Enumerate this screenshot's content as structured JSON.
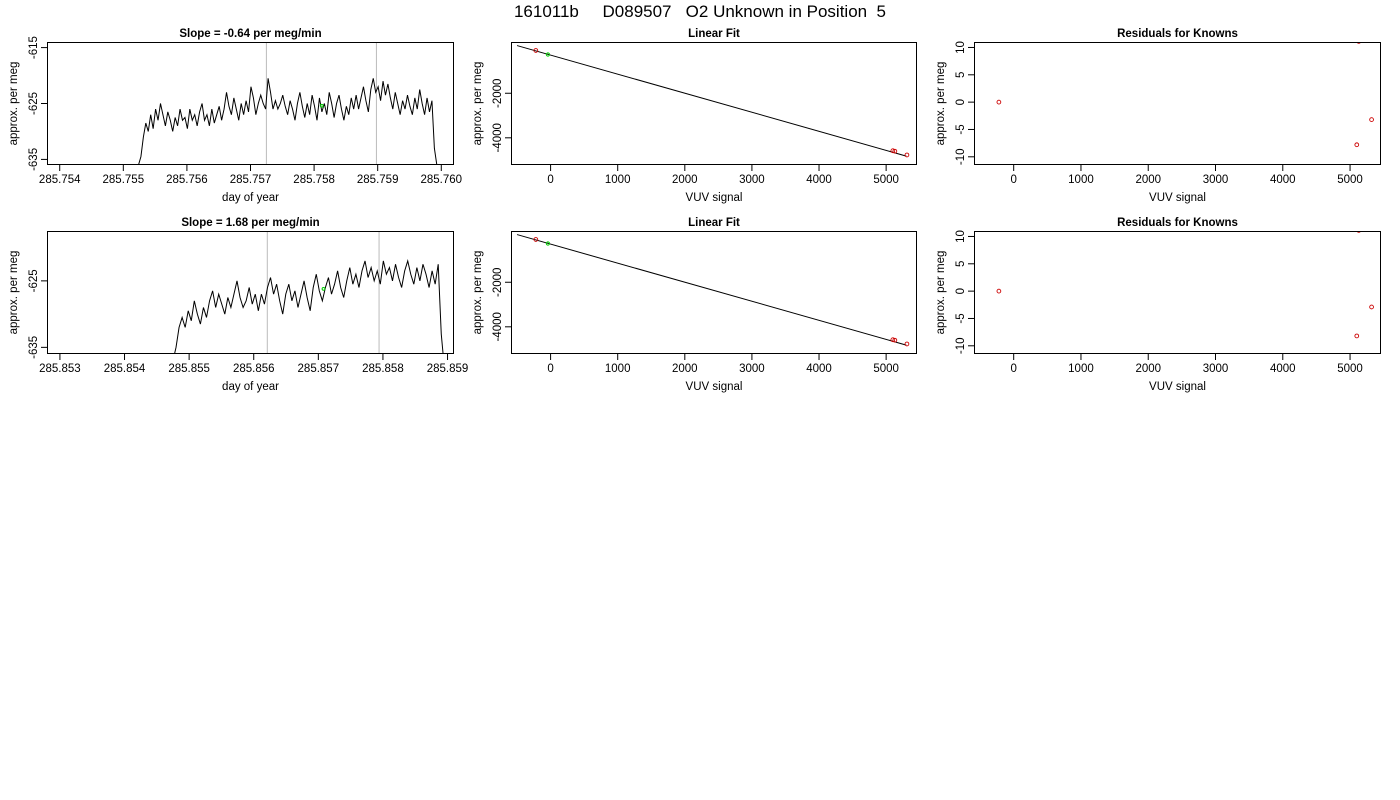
{
  "figure": {
    "title": "161011b     D089507   O2 Unknown in Position  5"
  },
  "chart_data": [
    {
      "id": "drift-top",
      "type": "line",
      "title": "Slope =  -0.64  per meg/min",
      "xlabel": "day of year",
      "ylabel": "approx. per meg",
      "xlim": [
        285.7538,
        285.7602
      ],
      "ylim": [
        -636,
        -614
      ],
      "xticks": [
        285.754,
        285.755,
        285.756,
        285.757,
        285.758,
        285.759,
        285.76
      ],
      "xtick_labels": [
        "285.754",
        "285.755",
        "285.756",
        "285.757",
        "285.758",
        "285.759",
        "285.760"
      ],
      "yticks": [
        -615,
        -625,
        -635
      ],
      "ytick_labels": [
        "-615",
        "-625",
        "-635"
      ],
      "vlines": [
        285.75725,
        285.75898
      ],
      "highlight_point": {
        "x": 285.75812,
        "y": -625.4,
        "color": "#00cc00"
      },
      "line_color": "#000000",
      "vline_color": "#bbbbbb",
      "series": [
        {
          "x_start": 285.7552,
          "x_end": 285.75993,
          "y": [
            -638,
            -636,
            -634.5,
            -631,
            -628.5,
            -630,
            -627,
            -629.5,
            -626,
            -628,
            -625,
            -627,
            -629,
            -626.5,
            -628,
            -630,
            -627.5,
            -629,
            -626,
            -628,
            -627.5,
            -629.5,
            -626,
            -628,
            -627,
            -629,
            -626.5,
            -625,
            -628,
            -627,
            -629,
            -626,
            -628.5,
            -627,
            -625.5,
            -628,
            -626,
            -623,
            -625.5,
            -627,
            -624,
            -626,
            -628,
            -625,
            -627,
            -624.5,
            -626.5,
            -622,
            -624,
            -627,
            -625,
            -623.5,
            -625,
            -626,
            -620.5,
            -623,
            -626,
            -624.5,
            -626,
            -625,
            -623.5,
            -625.5,
            -627,
            -624.5,
            -626,
            -628,
            -625,
            -623,
            -625.5,
            -627.5,
            -625,
            -627,
            -623.5,
            -625.5,
            -628,
            -624,
            -626.5,
            -625,
            -627,
            -623,
            -625,
            -627.5,
            -625,
            -623.5,
            -626,
            -628,
            -625.5,
            -627,
            -624,
            -626,
            -623.5,
            -626,
            -624,
            -622,
            -624.5,
            -626.5,
            -622.5,
            -620.5,
            -623,
            -622,
            -624.5,
            -621,
            -623.5,
            -621.5,
            -624,
            -626,
            -623,
            -625,
            -627,
            -624.5,
            -626,
            -623.5,
            -625.5,
            -627,
            -624,
            -626,
            -622.5,
            -625,
            -627,
            -624,
            -626.5,
            -624.5,
            -633,
            -636
          ]
        }
      ]
    },
    {
      "id": "fit-top",
      "type": "scatter",
      "title": "Linear Fit",
      "xlabel": "VUV signal",
      "ylabel": "approx. per meg",
      "xlim": [
        -590,
        5460
      ],
      "ylim": [
        -5220,
        300
      ],
      "xticks": [
        0,
        1000,
        2000,
        3000,
        4000,
        5000
      ],
      "xtick_labels": [
        "0",
        "1000",
        "2000",
        "3000",
        "4000",
        "5000"
      ],
      "yticks": [
        -2000,
        -4000
      ],
      "ytick_labels": [
        "-2000",
        "-4000"
      ],
      "fit_line": {
        "x": [
          -500,
          5300
        ],
        "y": [
          140,
          -4820
        ]
      },
      "points": [
        {
          "x": -220,
          "y": -80,
          "color": "#cc0000"
        },
        {
          "x": 5100,
          "y": -4580,
          "color": "#cc0000"
        },
        {
          "x": 5130,
          "y": -4600,
          "color": "#cc0000"
        },
        {
          "x": 5310,
          "y": -4770,
          "color": "#cc0000"
        }
      ],
      "unknown": {
        "x": -40,
        "y": -260,
        "color": "#00cc00"
      }
    },
    {
      "id": "resid-top",
      "type": "scatter",
      "title": "Residuals for Knowns",
      "xlabel": "VUV signal",
      "ylabel": "approx. per meg",
      "xlim": [
        -590,
        5460
      ],
      "ylim": [
        -11.5,
        11
      ],
      "xticks": [
        0,
        1000,
        2000,
        3000,
        4000,
        5000
      ],
      "xtick_labels": [
        "0",
        "1000",
        "2000",
        "3000",
        "4000",
        "5000"
      ],
      "yticks": [
        10,
        5,
        0,
        -5,
        -10
      ],
      "ytick_labels": [
        "10",
        "5",
        "0",
        "-5",
        "-10"
      ],
      "points": [
        {
          "x": -220,
          "y": 0,
          "color": "#cc0000"
        },
        {
          "x": 5130,
          "y": 11.1,
          "color": "#cc0000"
        },
        {
          "x": 5320,
          "y": -3.2,
          "color": "#cc0000"
        },
        {
          "x": 5100,
          "y": -7.8,
          "color": "#cc0000"
        }
      ]
    },
    {
      "id": "drift-bottom",
      "type": "line",
      "title": "Slope =  1.68  per meg/min",
      "xlabel": "day of year",
      "ylabel": "approx. per meg",
      "xlim": [
        285.8528,
        285.8591
      ],
      "ylim": [
        -636,
        -617.5
      ],
      "xticks": [
        285.853,
        285.854,
        285.855,
        285.856,
        285.857,
        285.858,
        285.859
      ],
      "xtick_labels": [
        "285.853",
        "285.854",
        "285.855",
        "285.856",
        "285.857",
        "285.858",
        "285.859"
      ],
      "yticks": [
        -625,
        -635
      ],
      "ytick_labels": [
        "-625",
        "-635"
      ],
      "vlines": [
        285.85621,
        285.85794
      ],
      "highlight_point": {
        "x": 285.85708,
        "y": -626.2,
        "color": "#00cc00"
      },
      "line_color": "#000000",
      "vline_color": "#bbbbbb",
      "series": [
        {
          "x_start": 285.85475,
          "x_end": 285.85895,
          "y": [
            -637,
            -635,
            -632,
            -630.5,
            -632,
            -629.5,
            -631,
            -628,
            -630,
            -631.5,
            -629,
            -630.5,
            -628,
            -626.5,
            -629,
            -627,
            -628.5,
            -630,
            -627.5,
            -629,
            -627,
            -625,
            -627.5,
            -629,
            -628,
            -626,
            -628.5,
            -627,
            -629.5,
            -627,
            -628.5,
            -626,
            -624.5,
            -627,
            -625.5,
            -628,
            -630,
            -627,
            -625.5,
            -628,
            -626.5,
            -629,
            -627,
            -625,
            -627.5,
            -629.5,
            -626,
            -624,
            -626.5,
            -628,
            -626,
            -624.5,
            -627,
            -625.5,
            -623.5,
            -626,
            -627.5,
            -625,
            -623,
            -625.5,
            -624,
            -626,
            -623.5,
            -622,
            -624.5,
            -623,
            -625,
            -623.5,
            -625.5,
            -622,
            -624,
            -623,
            -625,
            -622.5,
            -624.5,
            -626,
            -623.5,
            -622,
            -624,
            -625.5,
            -623,
            -625,
            -622.5,
            -624,
            -626,
            -623.5,
            -625.5,
            -622.5,
            -633,
            -638
          ]
        }
      ]
    },
    {
      "id": "fit-bottom",
      "type": "scatter",
      "title": "Linear Fit",
      "xlabel": "VUV signal",
      "ylabel": "approx. per meg",
      "xlim": [
        -590,
        5460
      ],
      "ylim": [
        -5220,
        300
      ],
      "xticks": [
        0,
        1000,
        2000,
        3000,
        4000,
        5000
      ],
      "xtick_labels": [
        "0",
        "1000",
        "2000",
        "3000",
        "4000",
        "5000"
      ],
      "yticks": [
        -2000,
        -4000
      ],
      "ytick_labels": [
        "-2000",
        "-4000"
      ],
      "fit_line": {
        "x": [
          -500,
          5300
        ],
        "y": [
          140,
          -4820
        ]
      },
      "points": [
        {
          "x": -220,
          "y": -80,
          "color": "#cc0000"
        },
        {
          "x": 5100,
          "y": -4580,
          "color": "#cc0000"
        },
        {
          "x": 5130,
          "y": -4600,
          "color": "#cc0000"
        },
        {
          "x": 5310,
          "y": -4770,
          "color": "#cc0000"
        }
      ],
      "unknown": {
        "x": -40,
        "y": -260,
        "color": "#00cc00"
      }
    },
    {
      "id": "resid-bottom",
      "type": "scatter",
      "title": "Residuals for Knowns",
      "xlabel": "VUV signal",
      "ylabel": "approx. per meg",
      "xlim": [
        -590,
        5460
      ],
      "ylim": [
        -11.5,
        11
      ],
      "xticks": [
        0,
        1000,
        2000,
        3000,
        4000,
        5000
      ],
      "xtick_labels": [
        "0",
        "1000",
        "2000",
        "3000",
        "4000",
        "5000"
      ],
      "yticks": [
        10,
        5,
        0,
        -5,
        -10
      ],
      "ytick_labels": [
        "10",
        "5",
        "0",
        "-5",
        "-10"
      ],
      "points": [
        {
          "x": -220,
          "y": 0,
          "color": "#cc0000"
        },
        {
          "x": 5130,
          "y": 11.1,
          "color": "#cc0000"
        },
        {
          "x": 5320,
          "y": -2.9,
          "color": "#cc0000"
        },
        {
          "x": 5100,
          "y": -8.2,
          "color": "#cc0000"
        }
      ]
    }
  ]
}
